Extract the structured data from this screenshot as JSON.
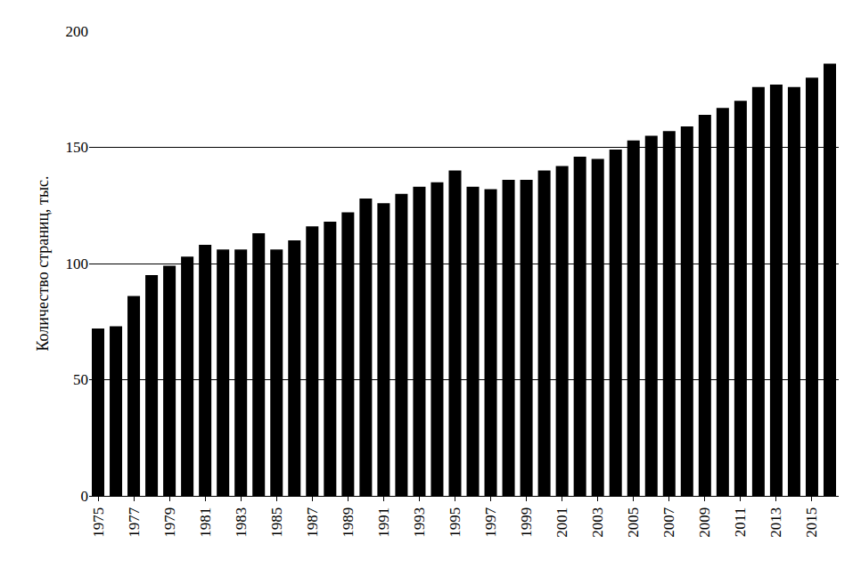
{
  "chart_data": {
    "type": "bar",
    "y_label": "Количество страниц, тыс.",
    "categories": [
      "1975",
      null,
      "1977",
      null,
      "1979",
      null,
      "1981",
      null,
      "1983",
      null,
      "1985",
      null,
      "1987",
      null,
      "1989",
      null,
      "1991",
      null,
      "1993",
      null,
      "1995",
      null,
      "1997",
      null,
      "1999",
      null,
      "2001",
      null,
      "2003",
      null,
      "2005",
      null,
      "2007",
      null,
      "2009",
      null,
      "2011",
      null,
      "2013",
      null,
      "2015",
      null
    ],
    "values": [
      72,
      73,
      86,
      95,
      99,
      103,
      108,
      106,
      106,
      113,
      106,
      110,
      116,
      118,
      122,
      128,
      126,
      130,
      133,
      135,
      140,
      133,
      132,
      136,
      136,
      140,
      142,
      146,
      145,
      149,
      153,
      155,
      157,
      159,
      164,
      167,
      170,
      176,
      177,
      176,
      180,
      186
    ],
    "color": "#000000",
    "ylim": [
      0,
      200
    ],
    "yticks": [
      0,
      50,
      100,
      150,
      200
    ],
    "grid": true
  }
}
